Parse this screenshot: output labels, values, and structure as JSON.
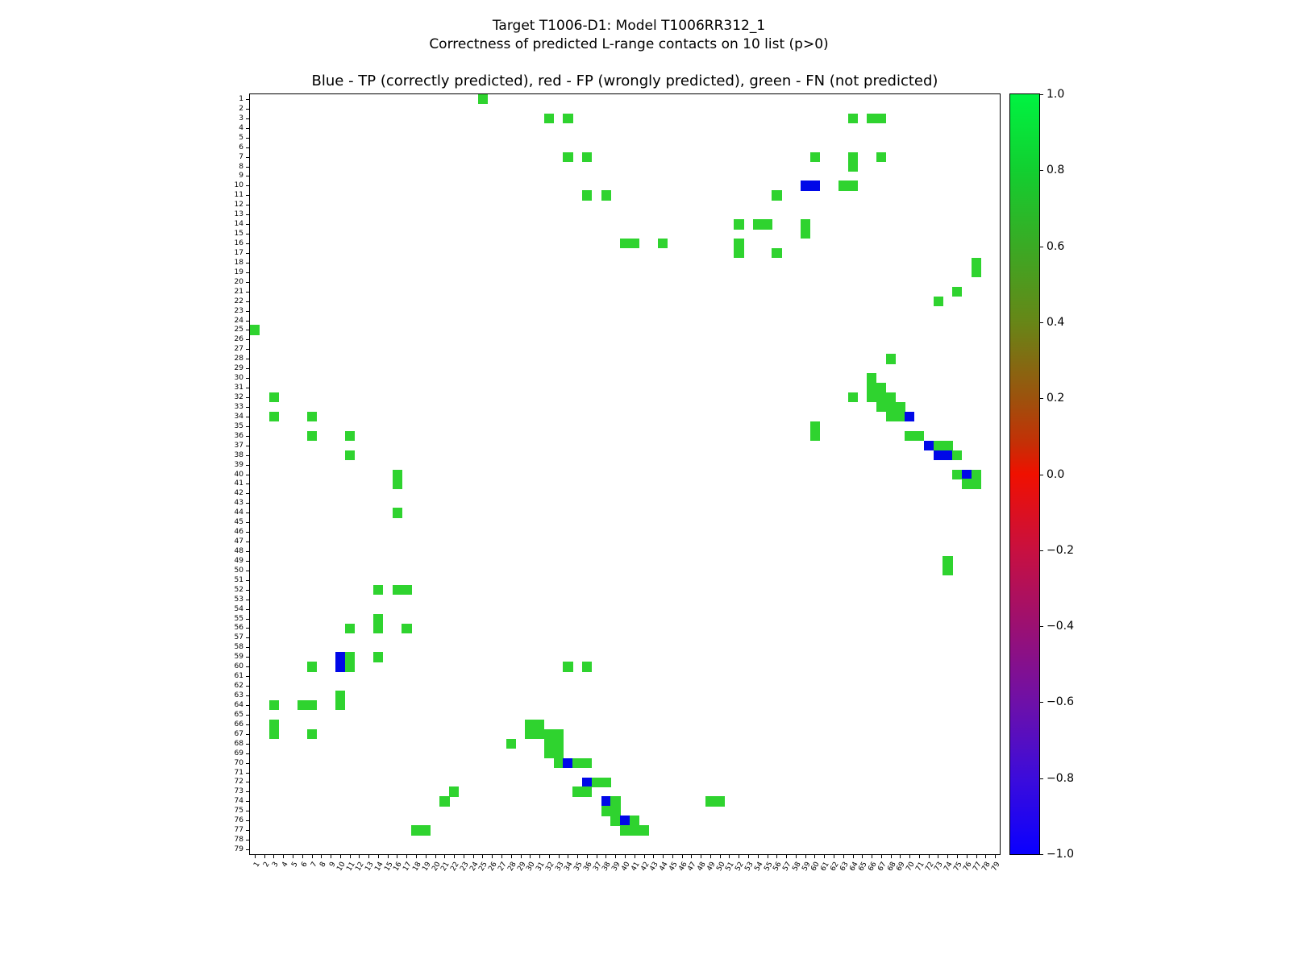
{
  "figure": {
    "suptitle_line1": "Target T1006-D1: Model T1006RR312_1",
    "suptitle_line2": "Correctness of predicted L-range contacts on 10 list (p>0)"
  },
  "chart_data": {
    "type": "heatmap",
    "title": "Blue - TP (correctly predicted), red - FP (wrongly predicted), green - FN (not predicted)",
    "suptitle": [
      "Target T1006-D1: Model T1006RR312_1",
      "Correctness of predicted L-range contacts on 10 list (p>0)"
    ],
    "n_rows": 79,
    "n_cols": 79,
    "x_tick_labels_start": 1,
    "x_tick_labels_end": 79,
    "y_tick_labels_start": 1,
    "y_tick_labels_end": 79,
    "y_axis_direction": "1 at top, 79 at bottom",
    "xlabel": "",
    "ylabel": "",
    "legend": {
      "blue": "TP (correctly predicted)",
      "red": "FP (wrongly predicted)",
      "green": "FN (not predicted)"
    },
    "colors": {
      "g": "#2fd32f",
      "b": "#0008e8",
      "background": "#ffffff",
      "axis": "#000000"
    },
    "colorbar": {
      "min": -1.0,
      "max": 1.0,
      "tick_labels": [
        "1.0",
        "0.8",
        "0.6",
        "0.4",
        "0.2",
        "0.0",
        "−0.2",
        "−0.4",
        "−0.6",
        "−0.8",
        "−1.0"
      ],
      "gradient_stops": [
        [
          "0%",
          "#00f341"
        ],
        [
          "10%",
          "#12cf30"
        ],
        [
          "20%",
          "#3aaa24"
        ],
        [
          "30%",
          "#678617"
        ],
        [
          "40%",
          "#9c520d"
        ],
        [
          "46%",
          "#c52f06"
        ],
        [
          "50%",
          "#f01000"
        ],
        [
          "60%",
          "#c81040"
        ],
        [
          "70%",
          "#9b1072"
        ],
        [
          "80%",
          "#6e10a8"
        ],
        [
          "90%",
          "#3c0cdb"
        ],
        [
          "100%",
          "#0a00ff"
        ]
      ]
    },
    "cells": [
      [
        1,
        25,
        "g"
      ],
      [
        3,
        32,
        "g"
      ],
      [
        3,
        34,
        "g"
      ],
      [
        3,
        64,
        "g"
      ],
      [
        3,
        66,
        "g"
      ],
      [
        3,
        67,
        "g"
      ],
      [
        7,
        34,
        "g"
      ],
      [
        7,
        36,
        "g"
      ],
      [
        7,
        60,
        "g"
      ],
      [
        7,
        64,
        "g"
      ],
      [
        7,
        67,
        "g"
      ],
      [
        8,
        64,
        "g"
      ],
      [
        10,
        59,
        "b"
      ],
      [
        10,
        60,
        "b"
      ],
      [
        10,
        63,
        "g"
      ],
      [
        10,
        64,
        "g"
      ],
      [
        11,
        36,
        "g"
      ],
      [
        11,
        38,
        "g"
      ],
      [
        11,
        56,
        "g"
      ],
      [
        14,
        52,
        "g"
      ],
      [
        14,
        54,
        "g"
      ],
      [
        14,
        55,
        "g"
      ],
      [
        14,
        59,
        "g"
      ],
      [
        15,
        59,
        "g"
      ],
      [
        16,
        40,
        "g"
      ],
      [
        16,
        41,
        "g"
      ],
      [
        16,
        44,
        "g"
      ],
      [
        16,
        52,
        "g"
      ],
      [
        17,
        52,
        "g"
      ],
      [
        17,
        56,
        "g"
      ],
      [
        18,
        77,
        "g"
      ],
      [
        19,
        77,
        "g"
      ],
      [
        21,
        75,
        "g"
      ],
      [
        22,
        73,
        "g"
      ],
      [
        25,
        1,
        "g"
      ],
      [
        28,
        68,
        "g"
      ],
      [
        30,
        66,
        "g"
      ],
      [
        31,
        66,
        "g"
      ],
      [
        31,
        67,
        "g"
      ],
      [
        32,
        3,
        "g"
      ],
      [
        32,
        64,
        "g"
      ],
      [
        32,
        66,
        "g"
      ],
      [
        32,
        67,
        "g"
      ],
      [
        32,
        68,
        "g"
      ],
      [
        33,
        67,
        "g"
      ],
      [
        33,
        68,
        "g"
      ],
      [
        33,
        69,
        "g"
      ],
      [
        34,
        3,
        "g"
      ],
      [
        34,
        7,
        "g"
      ],
      [
        34,
        68,
        "g"
      ],
      [
        34,
        69,
        "g"
      ],
      [
        34,
        70,
        "b"
      ],
      [
        35,
        60,
        "g"
      ],
      [
        36,
        7,
        "g"
      ],
      [
        36,
        11,
        "g"
      ],
      [
        36,
        60,
        "g"
      ],
      [
        36,
        70,
        "g"
      ],
      [
        36,
        71,
        "g"
      ],
      [
        37,
        72,
        "b"
      ],
      [
        37,
        73,
        "g"
      ],
      [
        37,
        74,
        "g"
      ],
      [
        38,
        11,
        "g"
      ],
      [
        38,
        73,
        "b"
      ],
      [
        38,
        74,
        "b"
      ],
      [
        38,
        75,
        "g"
      ],
      [
        40,
        16,
        "g"
      ],
      [
        40,
        75,
        "g"
      ],
      [
        40,
        76,
        "b"
      ],
      [
        40,
        77,
        "g"
      ],
      [
        41,
        16,
        "g"
      ],
      [
        41,
        76,
        "g"
      ],
      [
        41,
        77,
        "g"
      ],
      [
        44,
        16,
        "g"
      ],
      [
        49,
        74,
        "g"
      ],
      [
        50,
        74,
        "g"
      ],
      [
        52,
        14,
        "g"
      ],
      [
        52,
        16,
        "g"
      ],
      [
        52,
        17,
        "g"
      ],
      [
        55,
        14,
        "g"
      ],
      [
        56,
        11,
        "g"
      ],
      [
        56,
        14,
        "g"
      ],
      [
        56,
        17,
        "g"
      ],
      [
        59,
        10,
        "b"
      ],
      [
        59,
        11,
        "g"
      ],
      [
        59,
        14,
        "g"
      ],
      [
        60,
        7,
        "g"
      ],
      [
        60,
        10,
        "b"
      ],
      [
        60,
        11,
        "g"
      ],
      [
        60,
        34,
        "g"
      ],
      [
        60,
        36,
        "g"
      ],
      [
        63,
        10,
        "g"
      ],
      [
        64,
        3,
        "g"
      ],
      [
        64,
        6,
        "g"
      ],
      [
        64,
        7,
        "g"
      ],
      [
        64,
        10,
        "g"
      ],
      [
        66,
        3,
        "g"
      ],
      [
        66,
        30,
        "g"
      ],
      [
        66,
        31,
        "g"
      ],
      [
        67,
        3,
        "g"
      ],
      [
        67,
        7,
        "g"
      ],
      [
        67,
        30,
        "g"
      ],
      [
        67,
        31,
        "g"
      ],
      [
        67,
        32,
        "g"
      ],
      [
        67,
        33,
        "g"
      ],
      [
        68,
        28,
        "g"
      ],
      [
        68,
        32,
        "g"
      ],
      [
        68,
        33,
        "g"
      ],
      [
        69,
        32,
        "g"
      ],
      [
        69,
        33,
        "g"
      ],
      [
        70,
        33,
        "g"
      ],
      [
        70,
        34,
        "b"
      ],
      [
        70,
        35,
        "g"
      ],
      [
        70,
        36,
        "g"
      ],
      [
        72,
        36,
        "b"
      ],
      [
        72,
        37,
        "g"
      ],
      [
        72,
        38,
        "g"
      ],
      [
        73,
        22,
        "g"
      ],
      [
        73,
        35,
        "g"
      ],
      [
        73,
        36,
        "g"
      ],
      [
        74,
        21,
        "g"
      ],
      [
        74,
        38,
        "b"
      ],
      [
        74,
        39,
        "g"
      ],
      [
        74,
        49,
        "g"
      ],
      [
        74,
        50,
        "g"
      ],
      [
        75,
        38,
        "g"
      ],
      [
        75,
        39,
        "g"
      ],
      [
        76,
        39,
        "g"
      ],
      [
        76,
        40,
        "b"
      ],
      [
        76,
        41,
        "g"
      ],
      [
        77,
        18,
        "g"
      ],
      [
        77,
        19,
        "g"
      ],
      [
        77,
        40,
        "g"
      ],
      [
        77,
        41,
        "g"
      ],
      [
        77,
        42,
        "g"
      ]
    ]
  }
}
